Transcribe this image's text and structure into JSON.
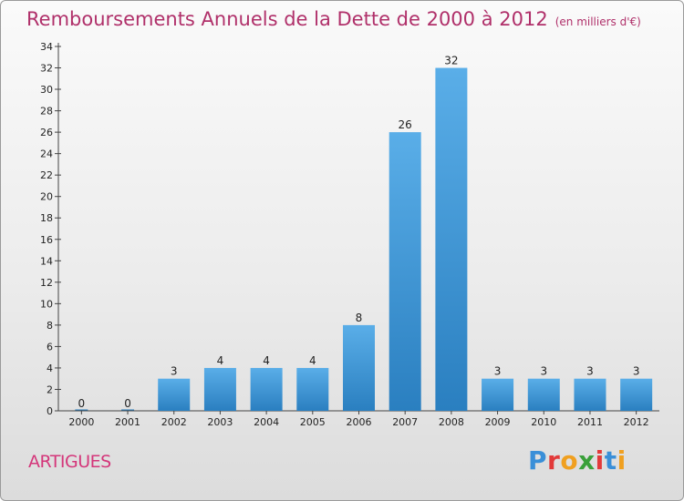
{
  "header": {
    "title": "Remboursements Annuels de la Dette de 2000 à 2012",
    "unit": "(en milliers d'€)"
  },
  "footer": {
    "commune": "ARTIGUES",
    "logo": [
      "P",
      "r",
      "o",
      "x",
      "i",
      "t",
      "i"
    ]
  },
  "colors": {
    "title": "#b0306a",
    "commune": "#d4367a",
    "bar_top": "#5aaee8",
    "bar_bottom": "#2a7fc0",
    "logo": [
      "#3a8fd8",
      "#e23a3a",
      "#f0a020",
      "#3aa03a",
      "#e23a3a",
      "#3a8fd8",
      "#f0a020"
    ]
  },
  "chart_data": {
    "type": "bar",
    "title": "Remboursements Annuels de la Dette de 2000 à 2012",
    "categories": [
      "2000",
      "2001",
      "2002",
      "2003",
      "2004",
      "2005",
      "2006",
      "2007",
      "2008",
      "2009",
      "2010",
      "2011",
      "2012"
    ],
    "values": [
      0,
      0,
      3,
      4,
      4,
      4,
      8,
      26,
      32,
      3,
      3,
      3,
      3
    ],
    "ylim": [
      0,
      34
    ],
    "yticks": [
      0,
      2,
      4,
      6,
      8,
      10,
      12,
      14,
      16,
      18,
      20,
      22,
      24,
      26,
      28,
      30,
      32,
      34
    ],
    "grid": false,
    "legend": "none"
  }
}
